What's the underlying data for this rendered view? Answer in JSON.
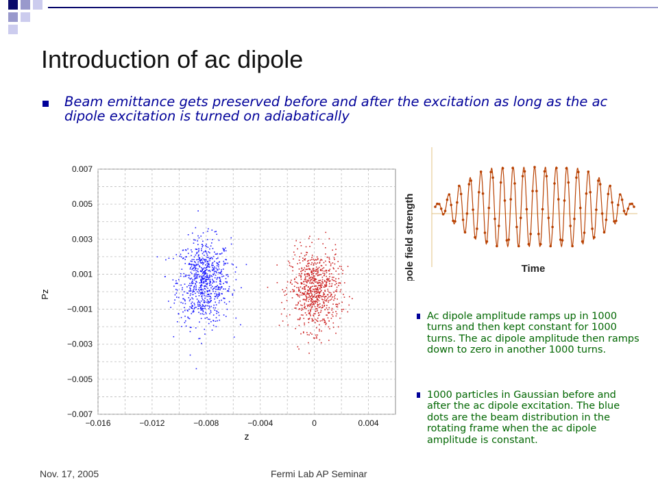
{
  "slide": {
    "title": "Introduction of ac dipole",
    "main_bullet": "Beam emittance gets preserved before and after the excitation as long as the ac dipole excitation is turned on adiabatically",
    "side_bullets": [
      "Ac dipole amplitude ramps up in 1000 turns and then kept constant for 1000 turns. The ac dipole amplitude then ramps down to zero in another 1000 turns.",
      "1000 particles in Gaussian before and after the ac dipole excitation. The blue dots are the beam distribution in the rotating frame when the ac dipole amplitude is constant."
    ],
    "footer_date": "Nov. 17, 2005",
    "footer_center": "Fermi Lab AP Seminar",
    "colors": {
      "title": "#111111",
      "bullet_text": "#000099",
      "side_text": "#006600",
      "accent": "#000099"
    }
  },
  "chart_data": [
    {
      "type": "scatter",
      "title": "",
      "xlabel": "z",
      "ylabel": "Pz",
      "xlim": [
        -0.016,
        0.006
      ],
      "ylim": [
        -0.007,
        0.007
      ],
      "x_ticks": [
        "−0.016",
        "−0.012",
        "−0.008",
        "−0.004",
        "0",
        "0.004"
      ],
      "y_ticks": [
        "0.007",
        "0.005",
        "0.003",
        "0.001",
        "−0.001",
        "−0.003",
        "−0.005",
        "−0.007"
      ],
      "grid": true,
      "series": [
        {
          "color": "#1a1aff",
          "center": [
            -0.0082,
            0.0006
          ],
          "std": [
            0.0016,
            0.0013
          ],
          "count": 1000
        },
        {
          "color": "#cc2222",
          "center": [
            0.0,
            0.0001
          ],
          "std": [
            0.0015,
            0.0012
          ],
          "count": 1000
        }
      ]
    },
    {
      "type": "line",
      "xlabel": "Time",
      "ylabel": "Dipole field strength",
      "description_values": {
        "ramp_up_turns": 1000,
        "flat_turns": 1000,
        "ramp_down_turns": 1000
      },
      "color": "#b84000"
    }
  ]
}
